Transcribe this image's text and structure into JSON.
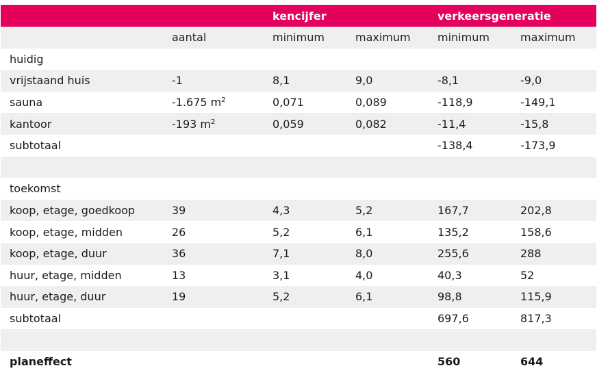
{
  "header": {
    "group1": "kencijfer",
    "group2": "verkeersgeneratie"
  },
  "subheader": {
    "col1": "aantal",
    "col2": "minimum",
    "col3": "maximum",
    "col4": "minimum",
    "col5": "maximum"
  },
  "rows": [
    {
      "label": "huidig",
      "aantal": "",
      "unit": "",
      "k_min": "",
      "k_max": "",
      "v_min": "",
      "v_max": ""
    },
    {
      "label": "vrijstaand huis",
      "aantal": "-1",
      "unit": "",
      "k_min": "8,1",
      "k_max": "9,0",
      "v_min": "-8,1",
      "v_max": "-9,0"
    },
    {
      "label": "sauna",
      "aantal": "-1.675 m",
      "unit": "2",
      "k_min": "0,071",
      "k_max": "0,089",
      "v_min": "-118,9",
      "v_max": "-149,1"
    },
    {
      "label": "kantoor",
      "aantal": "-193 m",
      "unit": "2",
      "k_min": "0,059",
      "k_max": "0,082",
      "v_min": "-11,4",
      "v_max": "-15,8"
    },
    {
      "label": "subtotaal",
      "aantal": "",
      "unit": "",
      "k_min": "",
      "k_max": "",
      "v_min": "-138,4",
      "v_max": "-173,9"
    },
    {
      "label": "",
      "aantal": "",
      "unit": "",
      "k_min": "",
      "k_max": "",
      "v_min": "",
      "v_max": ""
    },
    {
      "label": "toekomst",
      "aantal": "",
      "unit": "",
      "k_min": "",
      "k_max": "",
      "v_min": "",
      "v_max": ""
    },
    {
      "label": "koop, etage, goedkoop",
      "aantal": "39",
      "unit": "",
      "k_min": "4,3",
      "k_max": "5,2",
      "v_min": "167,7",
      "v_max": "202,8"
    },
    {
      "label": "koop, etage, midden",
      "aantal": "26",
      "unit": "",
      "k_min": "5,2",
      "k_max": "6,1",
      "v_min": "135,2",
      "v_max": "158,6"
    },
    {
      "label": "koop, etage, duur",
      "aantal": "36",
      "unit": "",
      "k_min": "7,1",
      "k_max": "8,0",
      "v_min": "255,6",
      "v_max": "288"
    },
    {
      "label": "huur, etage, midden",
      "aantal": "13",
      "unit": "",
      "k_min": "3,1",
      "k_max": "4,0",
      "v_min": "40,3",
      "v_max": "52"
    },
    {
      "label": "huur, etage, duur",
      "aantal": "19",
      "unit": "",
      "k_min": "5,2",
      "k_max": "6,1",
      "v_min": "98,8",
      "v_max": "115,9"
    },
    {
      "label": "subtotaal",
      "aantal": "",
      "unit": "",
      "k_min": "",
      "k_max": "",
      "v_min": "697,6",
      "v_max": "817,3"
    },
    {
      "label": "",
      "aantal": "",
      "unit": "",
      "k_min": "",
      "k_max": "",
      "v_min": "",
      "v_max": ""
    },
    {
      "label": "planeffect",
      "aantal": "",
      "unit": "",
      "k_min": "",
      "k_max": "",
      "v_min": "560",
      "v_max": "644"
    }
  ],
  "colors": {
    "header_bg": "#e5005e",
    "header_text": "#ffffff",
    "stripe_bg": "#efefef"
  }
}
